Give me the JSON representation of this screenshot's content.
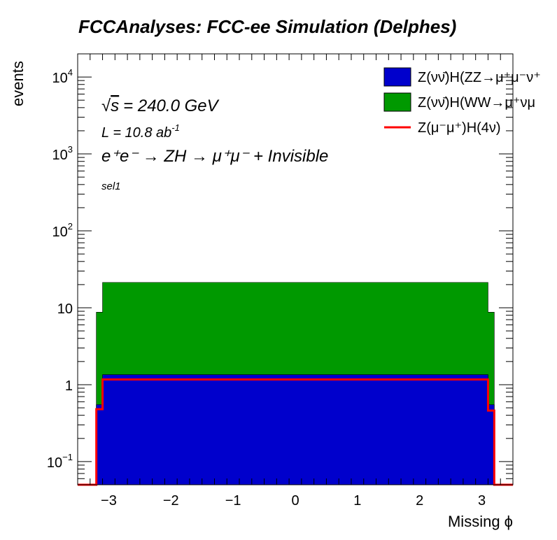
{
  "chart_data": {
    "type": "area",
    "title": "FCCAnalyses: FCC-ee Simulation (Delphes)",
    "xlabel": "Missing ϕ",
    "ylabel": "events",
    "xlim": [
      -3.5,
      3.5
    ],
    "ylim": [
      0.05,
      20000
    ],
    "yscale": "log",
    "x_ticks": [
      -3,
      -2,
      -1,
      0,
      1,
      2,
      3
    ],
    "x_tick_labels": [
      "−3",
      "−2",
      "−1",
      "0",
      "1",
      "2",
      "3"
    ],
    "y_ticks": [
      {
        "value": 0.1,
        "base": "10",
        "exp": "−1"
      },
      {
        "value": 1,
        "base": "1",
        "exp": ""
      },
      {
        "value": 10,
        "base": "10",
        "exp": ""
      },
      {
        "value": 100,
        "base": "10",
        "exp": "2"
      },
      {
        "value": 1000,
        "base": "10",
        "exp": "3"
      },
      {
        "value": 10000,
        "base": "10",
        "exp": "4"
      }
    ],
    "annotations": {
      "energy": "√s = 240.0 GeV",
      "energy_root": "√",
      "energy_s": "s",
      "energy_rest": "= 240.0 GeV",
      "lumi": "L = 10.8 ab",
      "lumi_exp": "-1",
      "process": "e⁺e⁻ → ZH → μ⁺μ⁻ + Invisible",
      "selection": "sel1"
    },
    "legend_position": "top-right",
    "x_edges": [
      -3.2,
      -3.1,
      3.1,
      3.2
    ],
    "series": [
      {
        "name": "Z(νν̄)H(ZZ→μ⁺μ⁻ν⁺",
        "style": "stacked-fill",
        "color": "#0000cc",
        "values": [
          0.55,
          1.35,
          0.55
        ]
      },
      {
        "name": "Z(νν̄)H(WW→μ⁺νμ",
        "style": "stacked-fill",
        "color": "#009900",
        "values": [
          8.2,
          20.0,
          8.2
        ]
      },
      {
        "name": "Z(μ⁻μ⁺)H(4ν)",
        "style": "line",
        "color": "#ff0000",
        "values": [
          0.48,
          1.17,
          0.46
        ]
      }
    ]
  }
}
